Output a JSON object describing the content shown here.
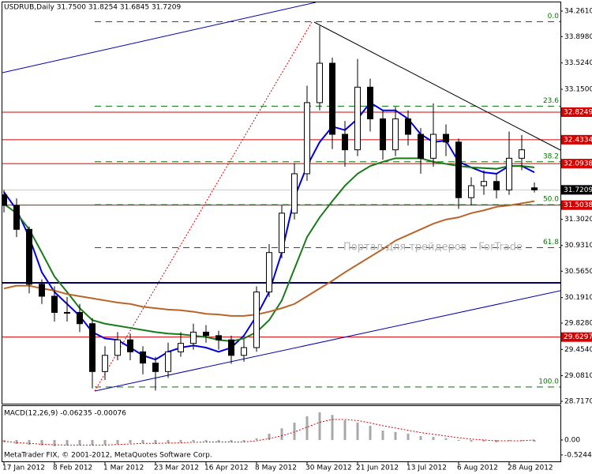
{
  "chart_data": [
    {
      "type": "candlestick",
      "title": "USDRUB,Daily  31.7500 31.8254 31.6845 31.7209",
      "watermark": "Портал для трейдеров – ForTrade",
      "categories": [
        "17 Jan 2012",
        null,
        null,
        null,
        "8 Feb 2012",
        null,
        null,
        null,
        "1 Mar 2012",
        null,
        null,
        null,
        "23 Mar 2012",
        null,
        null,
        null,
        "16 Apr 2012",
        null,
        null,
        null,
        "8 May 2012",
        null,
        null,
        null,
        "30 May 2012",
        null,
        null,
        null,
        "21 Jun 2012",
        null,
        null,
        null,
        "13 Jul 2012",
        null,
        null,
        null,
        "6 Aug 2012",
        null,
        null,
        null,
        "28 Aug 2012",
        null,
        null
      ],
      "open": [
        31.65,
        31.5,
        31.16,
        30.38,
        30.21,
        29.98,
        29.98,
        29.82,
        29.14,
        29.37,
        29.59,
        29.42,
        29.26,
        29.14,
        29.42,
        29.54,
        29.7,
        29.65,
        29.59,
        29.37,
        29.48,
        30.27,
        30.83,
        31.39,
        31.95,
        32.96,
        33.52,
        32.51,
        32.29,
        33.18,
        32.73,
        32.29,
        32.73,
        32.51,
        32.17,
        32.51,
        32.4,
        31.61,
        31.78,
        31.84,
        31.72,
        32.17,
        31.75
      ],
      "high": [
        31.72,
        31.6,
        31.2,
        30.45,
        30.35,
        30.2,
        30.1,
        29.9,
        29.5,
        29.7,
        29.68,
        29.5,
        29.35,
        29.55,
        29.7,
        29.82,
        29.8,
        29.72,
        29.65,
        29.6,
        30.35,
        30.95,
        31.5,
        32.1,
        33.2,
        34.05,
        33.6,
        32.7,
        33.58,
        33.3,
        32.85,
        32.9,
        32.85,
        32.6,
        32.95,
        32.65,
        32.45,
        31.9,
        32.0,
        31.95,
        32.55,
        32.5,
        31.8254
      ],
      "low": [
        31.4,
        31.05,
        30.25,
        30.1,
        29.85,
        29.85,
        29.7,
        28.9,
        29.02,
        29.3,
        29.3,
        29.1,
        28.87,
        29.05,
        29.35,
        29.45,
        29.55,
        29.45,
        29.25,
        29.28,
        29.42,
        30.2,
        30.75,
        31.3,
        31.85,
        32.85,
        32.3,
        32.05,
        32.2,
        32.55,
        32.15,
        32.2,
        32.35,
        31.95,
        32.05,
        32.2,
        31.45,
        31.5,
        31.65,
        31.6,
        31.65,
        32.0,
        31.6845
      ],
      "close": [
        31.5,
        31.16,
        30.38,
        30.21,
        29.98,
        29.98,
        29.82,
        29.14,
        29.37,
        29.59,
        29.42,
        29.26,
        29.14,
        29.42,
        29.54,
        29.7,
        29.65,
        29.59,
        29.37,
        29.48,
        30.27,
        30.83,
        31.39,
        31.95,
        32.96,
        33.52,
        32.51,
        32.29,
        33.18,
        32.73,
        32.29,
        32.73,
        32.51,
        32.17,
        32.51,
        32.4,
        31.61,
        31.78,
        31.84,
        31.72,
        32.17,
        32.29,
        31.7209
      ],
      "up_color": "#ffffff",
      "down_color": "#000000",
      "wick_color": "#000000",
      "moving_averages": [
        {
          "color": "#0000dd",
          "values": [
            31.69,
            31.44,
            31.05,
            30.55,
            30.27,
            30.1,
            29.93,
            29.7,
            29.61,
            29.59,
            29.48,
            29.37,
            29.31,
            29.42,
            29.48,
            29.51,
            29.48,
            29.42,
            29.48,
            29.65,
            29.93,
            30.27,
            30.83,
            31.61,
            32.06,
            32.4,
            32.62,
            32.57,
            32.73,
            32.96,
            32.85,
            32.85,
            32.73,
            32.51,
            32.4,
            32.42,
            32.12,
            32.04,
            31.97,
            31.95,
            32.06,
            32.06,
            31.97
          ]
        },
        {
          "color": "#1a7a1a",
          "values": [
            31.52,
            31.39,
            31.16,
            30.83,
            30.49,
            30.27,
            30.04,
            29.87,
            29.82,
            29.79,
            29.76,
            29.73,
            29.7,
            29.68,
            29.67,
            29.65,
            29.63,
            29.59,
            29.57,
            29.61,
            29.7,
            29.87,
            30.15,
            30.6,
            31.05,
            31.33,
            31.56,
            31.78,
            31.95,
            32.06,
            32.12,
            32.17,
            32.17,
            32.17,
            32.12,
            32.09,
            32.06,
            32.04,
            32.03,
            32.02,
            32.06,
            32.06,
            32.04
          ]
        },
        {
          "color": "#b8652a",
          "values": [
            30.32,
            30.36,
            30.36,
            30.32,
            30.29,
            30.24,
            30.21,
            30.18,
            30.15,
            30.12,
            30.1,
            30.06,
            30.04,
            30.02,
            30.01,
            29.99,
            29.96,
            29.95,
            29.93,
            29.93,
            29.95,
            29.99,
            30.04,
            30.1,
            30.21,
            30.32,
            30.43,
            30.55,
            30.66,
            30.77,
            30.88,
            31.0,
            31.08,
            31.16,
            31.24,
            31.3,
            31.33,
            31.39,
            31.43,
            31.48,
            31.5,
            31.53,
            31.56
          ]
        }
      ],
      "levels": [
        {
          "value": 32.8249,
          "color": "#d40000"
        },
        {
          "value": 32.4334,
          "color": "#d40000"
        },
        {
          "value": 32.0938,
          "color": "#d40000"
        },
        {
          "value": 31.5038,
          "color": "#d40000"
        },
        {
          "value": 29.6297,
          "color": "#d40000"
        }
      ],
      "last_price": {
        "value": 31.7209,
        "color": "#000000",
        "line_color": "#c8c8c8"
      },
      "hlines": [
        {
          "value": 30.4,
          "color": "#000066"
        }
      ],
      "fibo_color": "#007800",
      "fibo": [
        {
          "label": "0.0",
          "price": 34.11
        },
        {
          "label": "23.6",
          "price": 32.91
        },
        {
          "label": "38.2",
          "price": 32.12
        },
        {
          "label": "50.0",
          "price": 31.51
        },
        {
          "label": "61.8",
          "price": 30.9
        },
        {
          "label": "100.0",
          "price": 28.92
        }
      ],
      "ylim": [
        28.717,
        34.261
      ],
      "yticks": [
        {
          "value": 34.261,
          "label": "34.2610"
        },
        {
          "value": 33.898,
          "label": "33.8980"
        },
        {
          "value": 33.524,
          "label": "33.5240"
        },
        {
          "value": 33.15,
          "label": "33.1500"
        },
        {
          "value": 31.302,
          "label": "31.3020"
        },
        {
          "value": 30.931,
          "label": "30.9310"
        },
        {
          "value": 30.565,
          "label": "30.5650"
        },
        {
          "value": 30.191,
          "label": "30.1910"
        },
        {
          "value": 29.828,
          "label": "29.8280"
        },
        {
          "value": 29.454,
          "label": "29.4540"
        },
        {
          "value": 29.081,
          "label": "29.0810"
        },
        {
          "value": 28.717,
          "label": "28.7170"
        }
      ]
    },
    {
      "type": "macd",
      "title": "MACD(12,26,9) -0.06235 -0.00076",
      "color": "#a8a8a8",
      "signal_color": "#e00000",
      "values": [
        -0.08,
        -0.14,
        -0.17,
        -0.19,
        -0.22,
        -0.19,
        -0.19,
        -0.19,
        -0.17,
        -0.14,
        -0.11,
        -0.11,
        -0.14,
        -0.11,
        -0.08,
        -0.06,
        -0.06,
        -0.08,
        -0.08,
        -0.06,
        0.06,
        0.22,
        0.41,
        0.61,
        0.83,
        0.97,
        0.88,
        0.69,
        0.61,
        0.5,
        0.33,
        0.28,
        0.22,
        0.14,
        0.11,
        0.06,
        -0.03,
        -0.06,
        -0.06,
        -0.08,
        -0.03,
        -0.03,
        -0.06235
      ],
      "signal": [
        -0.05,
        -0.09,
        -0.12,
        -0.15,
        -0.17,
        -0.18,
        -0.18,
        -0.18,
        -0.18,
        -0.16,
        -0.14,
        -0.12,
        -0.12,
        -0.11,
        -0.1,
        -0.08,
        -0.07,
        -0.07,
        -0.07,
        -0.07,
        -0.03,
        0.05,
        0.15,
        0.28,
        0.45,
        0.62,
        0.72,
        0.72,
        0.68,
        0.6,
        0.5,
        0.42,
        0.34,
        0.26,
        0.2,
        0.14,
        0.08,
        0.03,
        0.0,
        -0.03,
        -0.03,
        -0.03,
        -0.00076
      ],
      "ylim": [
        -0.75,
        1.19
      ],
      "yticks": [
        {
          "value": 0,
          "label": "0.00"
        },
        {
          "value": -0.52449,
          "label": "-0.52449"
        }
      ]
    }
  ],
  "footer": "MetaTrader FIX, © 2001-2012, MetaQuotes Software Corp."
}
